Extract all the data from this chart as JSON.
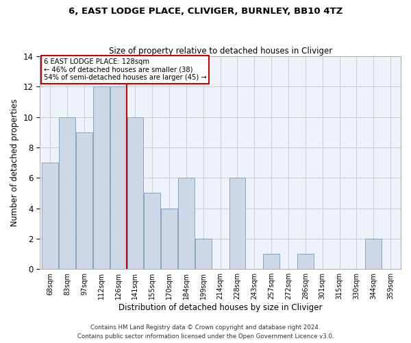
{
  "title": "6, EAST LODGE PLACE, CLIVIGER, BURNLEY, BB10 4TZ",
  "subtitle": "Size of property relative to detached houses in Cliviger",
  "xlabel": "Distribution of detached houses by size in Cliviger",
  "ylabel": "Number of detached properties",
  "categories": [
    "68sqm",
    "83sqm",
    "97sqm",
    "112sqm",
    "126sqm",
    "141sqm",
    "155sqm",
    "170sqm",
    "184sqm",
    "199sqm",
    "214sqm",
    "228sqm",
    "243sqm",
    "257sqm",
    "272sqm",
    "286sqm",
    "301sqm",
    "315sqm",
    "330sqm",
    "344sqm",
    "359sqm"
  ],
  "values": [
    7,
    10,
    9,
    12,
    12,
    10,
    5,
    4,
    6,
    2,
    0,
    6,
    0,
    1,
    0,
    1,
    0,
    0,
    0,
    2,
    0
  ],
  "bar_color": "#ccd8e8",
  "bar_edge_color": "#7a9ab8",
  "grid_color": "#cccccc",
  "background_color": "#eef2fb",
  "annotation_box_color": "#cc0000",
  "vline_color": "#cc0000",
  "vline_x_index": 4,
  "annotation_text_line1": "6 EAST LODGE PLACE: 128sqm",
  "annotation_text_line2": "← 46% of detached houses are smaller (38)",
  "annotation_text_line3": "54% of semi-detached houses are larger (45) →",
  "footnote1": "Contains HM Land Registry data © Crown copyright and database right 2024.",
  "footnote2": "Contains public sector information licensed under the Open Government Licence v3.0.",
  "ylim": [
    0,
    14
  ],
  "yticks": [
    0,
    2,
    4,
    6,
    8,
    10,
    12,
    14
  ]
}
